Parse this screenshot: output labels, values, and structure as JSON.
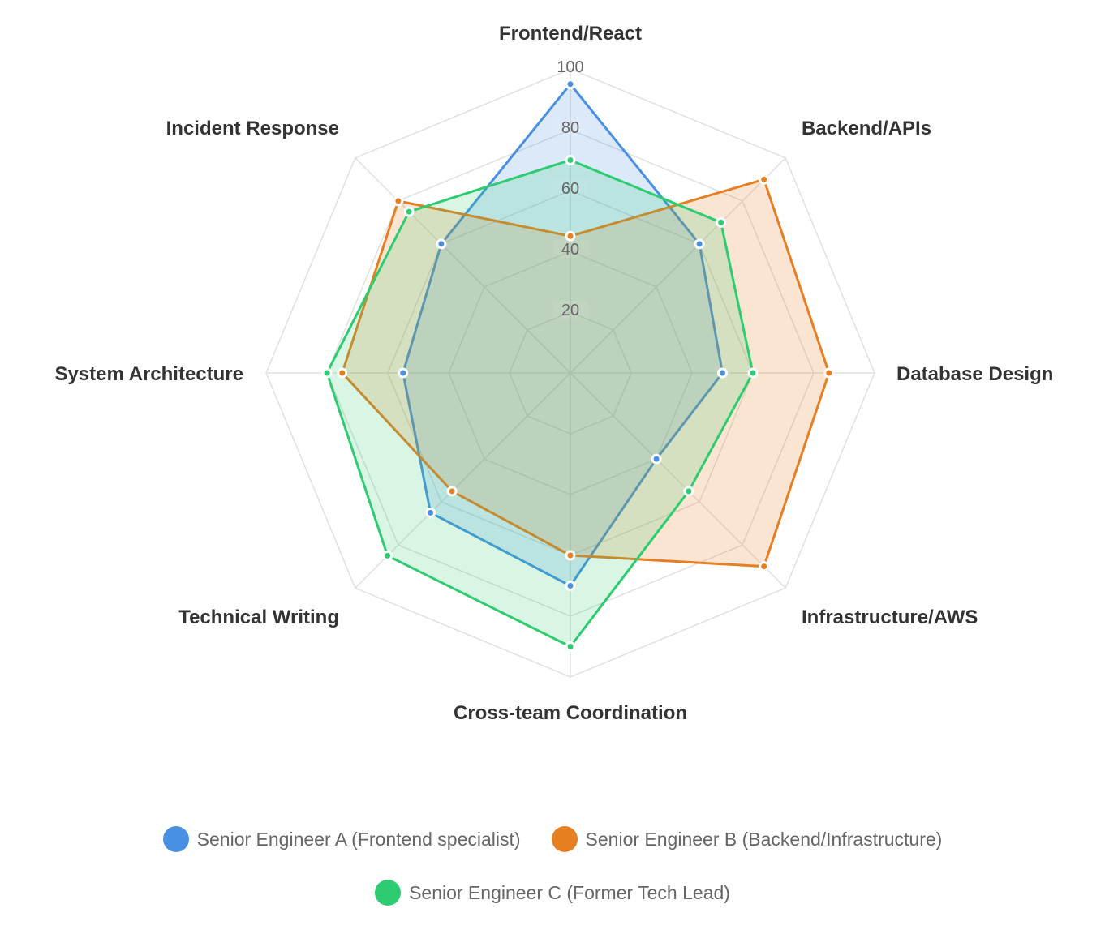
{
  "chart_data": {
    "type": "radar",
    "title": "",
    "categories": [
      "Frontend/React",
      "Backend/APIs",
      "Database Design",
      "Infrastructure/AWS",
      "Cross-team Coordination",
      "Technical Writing",
      "System Architecture",
      "Incident Response"
    ],
    "rlim": [
      0,
      100
    ],
    "ticks": [
      20,
      40,
      60,
      80,
      100
    ],
    "grid": true,
    "legend_position": "bottom",
    "series": [
      {
        "name": "Senior Engineer A (Frontend specialist)",
        "color": "#4a90e2",
        "fill": "rgba(74,144,226,0.2)",
        "values": [
          95,
          60,
          50,
          40,
          70,
          65,
          55,
          60
        ]
      },
      {
        "name": "Senior Engineer B (Backend/Infrastructure)",
        "color": "#e67e22",
        "fill": "rgba(230,126,34,0.2)",
        "values": [
          45,
          90,
          85,
          90,
          60,
          55,
          75,
          80
        ]
      },
      {
        "name": "Senior Engineer C (Former Tech Lead)",
        "color": "#2ecc71",
        "fill": "rgba(46,204,113,0.18)",
        "values": [
          70,
          70,
          60,
          55,
          90,
          85,
          80,
          75
        ]
      }
    ]
  },
  "legend": {
    "row1": [
      {
        "label": "Senior Engineer A (Frontend specialist)",
        "color": "#4a90e2"
      },
      {
        "label": "Senior Engineer B (Backend/Infrastructure)",
        "color": "#e67e22"
      }
    ],
    "row2": [
      {
        "label": "Senior Engineer C (Former Tech Lead)",
        "color": "#2ecc71"
      }
    ]
  }
}
